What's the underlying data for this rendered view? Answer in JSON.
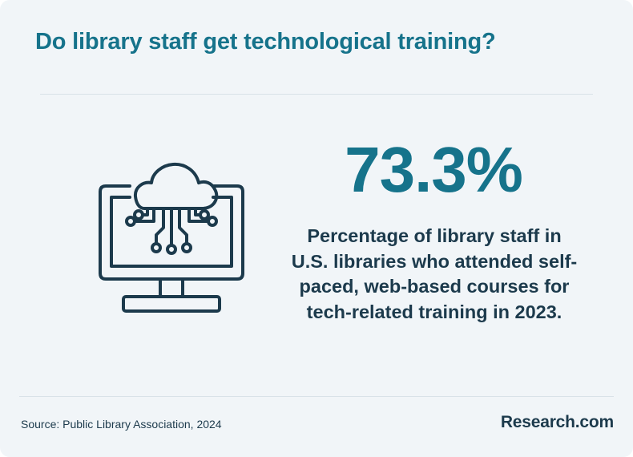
{
  "header": {
    "title": "Do library staff get technological training?"
  },
  "illustration": {
    "icon": "cloud-computing-monitor-icon",
    "stroke_color": "#1c3a4c"
  },
  "stat": {
    "value": "73.3%",
    "description": "Percentage of library staff in U.S. libraries who attended self-paced, web-based courses for tech-related training in 2023."
  },
  "footer": {
    "source": "Source: Public Library Association, 2024",
    "brand": "Research.com"
  },
  "colors": {
    "accent": "#16738b",
    "text_dark": "#1c3a4c",
    "background": "#f1f5f8"
  }
}
